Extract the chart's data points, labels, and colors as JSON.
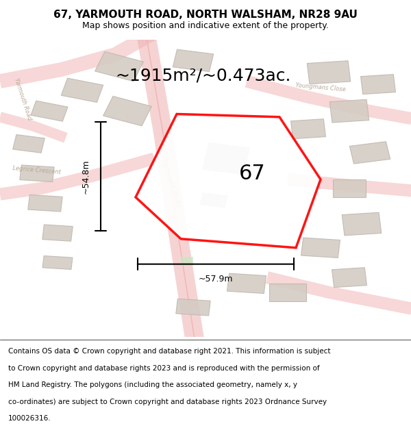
{
  "title": "67, YARMOUTH ROAD, NORTH WALSHAM, NR28 9AU",
  "subtitle": "Map shows position and indicative extent of the property.",
  "area_text": "~1915m²/~0.473ac.",
  "label_67": "67",
  "dim_vertical": "~54.8m",
  "dim_horizontal": "~57.9m",
  "footer_lines": [
    "Contains OS data © Crown copyright and database right 2021. This information is subject",
    "to Crown copyright and database rights 2023 and is reproduced with the permission of",
    "HM Land Registry. The polygons (including the associated geometry, namely x, y",
    "co-ordinates) are subject to Crown copyright and database rights 2023 Ordnance Survey",
    "100026316."
  ],
  "map_bg": "#f5f0ec",
  "road_color": "#f0b0b0",
  "building_color": "#d4ccc4",
  "building_edge": "#c0b8b0",
  "property_color": "#ff0000",
  "dim_color": "#1a1a1a",
  "street_label_color": "#b8a898",
  "title_fontsize": 11,
  "subtitle_fontsize": 9,
  "area_fontsize": 18,
  "label_fontsize": 22,
  "dim_fontsize": 9,
  "footer_fontsize": 7.5
}
